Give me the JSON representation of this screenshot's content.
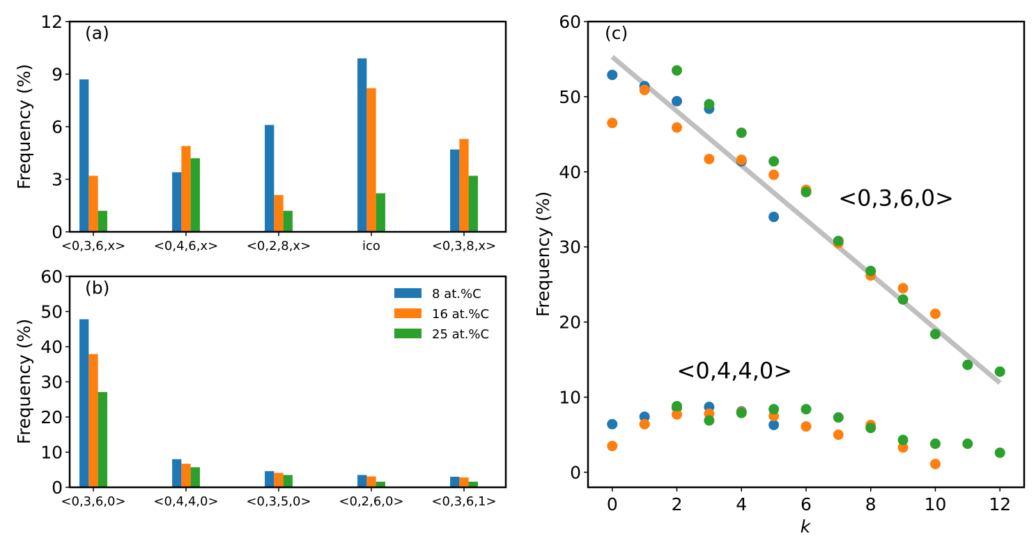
{
  "colors": {
    "s8": "#1f77b4",
    "s16": "#ff7f0e",
    "s25": "#2ca02c",
    "fit": "#bfbfbf",
    "axis": "#000000"
  },
  "chart_data": [
    {
      "type": "bar",
      "panel_label": "(a)",
      "ylabel": "Frequency (%)",
      "ylim": [
        0,
        12
      ],
      "yticks": [
        "0",
        "3",
        "6",
        "9",
        "12"
      ],
      "categories": [
        "<0,3,6,x>",
        "<0,4,6,x>",
        "<0,2,8,x>",
        "ico",
        "<0,3,8,x>"
      ],
      "series": [
        {
          "name": "8 at.%C",
          "color": "#1f77b4",
          "values": [
            8.7,
            3.4,
            6.1,
            9.9,
            4.7
          ]
        },
        {
          "name": "16 at.%C",
          "color": "#ff7f0e",
          "values": [
            3.2,
            4.9,
            2.1,
            8.2,
            5.3
          ]
        },
        {
          "name": "25 at.%C",
          "color": "#2ca02c",
          "values": [
            1.2,
            4.2,
            1.2,
            2.2,
            3.2
          ]
        }
      ]
    },
    {
      "type": "bar",
      "panel_label": "(b)",
      "ylabel": "Frequency (%)",
      "ylim": [
        0,
        60
      ],
      "yticks": [
        "0",
        "10",
        "20",
        "30",
        "40",
        "50",
        "60"
      ],
      "categories": [
        "<0,3,6,0>",
        "<0,4,4,0>",
        "<0,3,5,0>",
        "<0,2,6,0>",
        "<0,3,6,1>"
      ],
      "legend_position": "top-right",
      "series": [
        {
          "name": "8 at.%C",
          "color": "#1f77b4",
          "values": [
            47.8,
            8.0,
            4.6,
            3.5,
            3.0
          ]
        },
        {
          "name": "16 at.%C",
          "color": "#ff7f0e",
          "values": [
            37.9,
            6.7,
            4.1,
            3.1,
            2.8
          ]
        },
        {
          "name": "25 at.%C",
          "color": "#2ca02c",
          "values": [
            27.1,
            5.7,
            3.5,
            1.6,
            1.6
          ]
        }
      ]
    },
    {
      "type": "scatter",
      "panel_label": "(c)",
      "xlabel": "k",
      "ylabel": "Frequency (%)",
      "xlim": [
        -0.75,
        12.75
      ],
      "ylim": [
        -2,
        60
      ],
      "xticks": [
        "0",
        "2",
        "4",
        "6",
        "8",
        "10",
        "12"
      ],
      "yticks": [
        "0",
        "10",
        "20",
        "30",
        "40",
        "50",
        "60"
      ],
      "annotations": [
        {
          "text": "<0,3,6,0>",
          "x": 7.0,
          "y": 35.5
        },
        {
          "text": "<0,4,4,0>",
          "x": 2.0,
          "y": 12.5
        }
      ],
      "fit_line": {
        "x": [
          0,
          12
        ],
        "y": [
          55.3,
          11.9
        ]
      },
      "series": [
        {
          "name": "8 at.%C <0,3,6,0>",
          "color": "#1f77b4",
          "x": [
            0,
            1,
            2,
            3,
            4,
            5
          ],
          "y": [
            52.9,
            51.4,
            49.4,
            48.4,
            41.4,
            34.0
          ]
        },
        {
          "name": "16 at.%C <0,3,6,0>",
          "color": "#ff7f0e",
          "x": [
            0,
            1,
            2,
            3,
            4,
            5,
            6,
            7,
            8,
            9,
            10
          ],
          "y": [
            46.5,
            50.9,
            45.9,
            41.7,
            41.6,
            39.6,
            37.6,
            30.5,
            26.2,
            24.5,
            21.1
          ]
        },
        {
          "name": "25 at.%C <0,3,6,0>",
          "color": "#2ca02c",
          "x": [
            2,
            3,
            4,
            5,
            6,
            7,
            8,
            9,
            10,
            11,
            12
          ],
          "y": [
            53.5,
            49.0,
            45.2,
            41.4,
            37.3,
            30.8,
            26.8,
            23.0,
            18.4,
            14.3,
            13.4
          ]
        },
        {
          "name": "8 at.%C <0,4,4,0>",
          "color": "#1f77b4",
          "x": [
            0,
            1,
            2,
            3,
            4,
            5
          ],
          "y": [
            6.4,
            7.4,
            8.6,
            8.7,
            8.1,
            6.3
          ]
        },
        {
          "name": "16 at.%C <0,4,4,0>",
          "color": "#ff7f0e",
          "x": [
            0,
            1,
            2,
            3,
            4,
            5,
            6,
            7,
            8,
            9,
            10
          ],
          "y": [
            3.5,
            6.4,
            7.7,
            7.8,
            8.0,
            7.5,
            6.1,
            5.0,
            6.3,
            3.3,
            1.1
          ]
        },
        {
          "name": "25 at.%C <0,4,4,0>",
          "color": "#2ca02c",
          "x": [
            2,
            3,
            4,
            5,
            6,
            7,
            8,
            9,
            10,
            11,
            12
          ],
          "y": [
            8.8,
            6.9,
            7.9,
            8.4,
            8.4,
            7.3,
            5.9,
            4.3,
            3.8,
            3.8,
            2.6
          ]
        }
      ]
    }
  ]
}
